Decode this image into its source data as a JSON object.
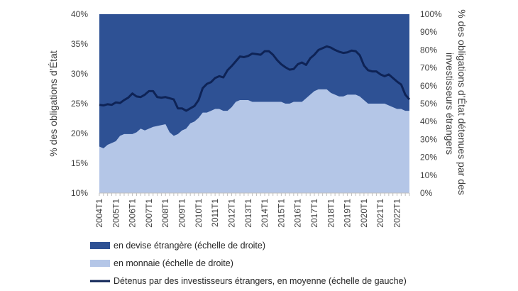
{
  "chart_data": {
    "type": "area",
    "x": [
      "2004T1",
      "2004T2",
      "2004T3",
      "2004T4",
      "2005T1",
      "2005T2",
      "2005T3",
      "2005T4",
      "2006T1",
      "2006T2",
      "2006T3",
      "2006T4",
      "2007T1",
      "2007T2",
      "2007T3",
      "2007T4",
      "2008T1",
      "2008T2",
      "2008T3",
      "2008T4",
      "2009T1",
      "2009T2",
      "2009T3",
      "2009T4",
      "2010T1",
      "2010T2",
      "2010T3",
      "2010T4",
      "2011T1",
      "2011T2",
      "2011T3",
      "2011T4",
      "2012T1",
      "2012T2",
      "2012T3",
      "2012T4",
      "2013T1",
      "2013T2",
      "2013T3",
      "2013T4",
      "2014T1",
      "2014T2",
      "2014T3",
      "2014T4",
      "2015T1",
      "2015T2",
      "2015T3",
      "2015T4",
      "2016T1",
      "2016T2",
      "2016T3",
      "2016T4",
      "2017T1",
      "2017T2",
      "2017T3",
      "2017T4",
      "2018T1",
      "2018T2",
      "2018T3",
      "2018T4",
      "2019T1",
      "2019T2",
      "2019T3",
      "2019T4",
      "2020T1",
      "2020T2",
      "2020T3",
      "2020T4",
      "2021T1",
      "2021T2",
      "2021T3",
      "2021T4",
      "2022T1",
      "2022T2",
      "2022T3",
      "2022T4"
    ],
    "x_tick_labels": [
      "2004T1",
      "2005T1",
      "2006T1",
      "2007T1",
      "2008T1",
      "2009T1",
      "2010T1",
      "2011T1",
      "2012T1",
      "2013T1",
      "2014T1",
      "2015T1",
      "2016T1",
      "2017T1",
      "2018T1",
      "2019T1",
      "2020T1",
      "2021T1",
      "2022T1"
    ],
    "series": [
      {
        "name": "en devise étrangère (échelle de droite)",
        "axis": "right",
        "values": [
          100,
          100,
          100,
          100,
          100,
          100,
          100,
          100,
          100,
          100,
          100,
          100,
          100,
          100,
          100,
          100,
          100,
          100,
          100,
          100,
          100,
          100,
          100,
          100,
          100,
          100,
          100,
          100,
          100,
          100,
          100,
          100,
          100,
          100,
          100,
          100,
          100,
          100,
          100,
          100,
          100,
          100,
          100,
          100,
          100,
          100,
          100,
          100,
          100,
          100,
          100,
          100,
          100,
          100,
          100,
          100,
          100,
          100,
          100,
          100,
          100,
          100,
          100,
          100,
          100,
          100,
          100,
          100,
          100,
          100,
          100,
          100,
          100,
          100,
          100,
          100
        ]
      },
      {
        "name": "en monnaie (échelle de droite)",
        "axis": "right",
        "values": [
          26,
          25,
          27,
          28,
          29,
          32,
          33,
          33,
          33,
          34,
          36,
          35,
          36,
          37,
          37.5,
          38,
          38.5,
          34,
          32,
          33,
          35,
          36,
          39,
          40,
          42,
          45,
          45,
          46,
          47,
          47,
          46,
          46,
          48,
          51,
          52,
          52,
          52,
          51,
          51,
          51,
          51,
          51,
          51,
          51,
          51,
          50,
          50,
          51,
          51,
          51,
          53,
          55,
          57,
          58,
          58,
          58,
          56,
          55,
          54,
          54,
          55,
          55,
          55,
          54,
          52,
          50,
          50,
          50,
          50,
          50,
          49,
          48,
          47,
          47,
          46,
          46
        ]
      },
      {
        "name": "Détenus par des investisseurs étrangers, en moyenne (échelle de gauche)",
        "axis": "left",
        "values": [
          24.8,
          24.7,
          24.9,
          24.8,
          25.2,
          25.1,
          25.6,
          26.0,
          26.7,
          26.2,
          26.1,
          26.5,
          27.1,
          27.1,
          26.1,
          26.0,
          26.1,
          25.9,
          25.7,
          24.2,
          24.2,
          23.8,
          24.2,
          24.6,
          25.6,
          27.6,
          28.3,
          28.6,
          29.3,
          29.6,
          29.4,
          30.6,
          31.3,
          32.1,
          32.9,
          32.8,
          33.0,
          33.4,
          33.3,
          33.2,
          33.8,
          33.8,
          33.2,
          32.3,
          31.6,
          31.1,
          30.7,
          30.8,
          31.6,
          31.9,
          31.5,
          32.6,
          33.2,
          34.0,
          34.3,
          34.6,
          34.4,
          34.0,
          33.7,
          33.5,
          33.6,
          33.9,
          33.8,
          33.1,
          31.4,
          30.6,
          30.4,
          30.4,
          29.9,
          29.6,
          29.9,
          29.3,
          28.7,
          28.2,
          26.5,
          25.7
        ]
      }
    ],
    "y_left": {
      "label": "% des obligations d’État",
      "min": 10,
      "max": 40,
      "ticks": [
        "10%",
        "15%",
        "20%",
        "25%",
        "30%",
        "35%",
        "40%"
      ],
      "tick_values": [
        10,
        15,
        20,
        25,
        30,
        35,
        40
      ]
    },
    "y_right": {
      "label": "% des obligations d’État détenues par des investisseurs étrangers",
      "label_lines": [
        "% des obligations d’État détenues par des",
        "investisseurs étrangers"
      ],
      "min": 0,
      "max": 100,
      "ticks": [
        "0%",
        "10%",
        "20%",
        "30%",
        "40%",
        "50%",
        "60%",
        "70%",
        "80%",
        "90%",
        "100%"
      ],
      "tick_values": [
        0,
        10,
        20,
        30,
        40,
        50,
        60,
        70,
        80,
        90,
        100
      ]
    },
    "grid": false,
    "legend_position": "bottom-left",
    "colors": {
      "devise": "#2E5194",
      "monnaie": "#B4C6E7",
      "line": "#0E2356"
    }
  }
}
